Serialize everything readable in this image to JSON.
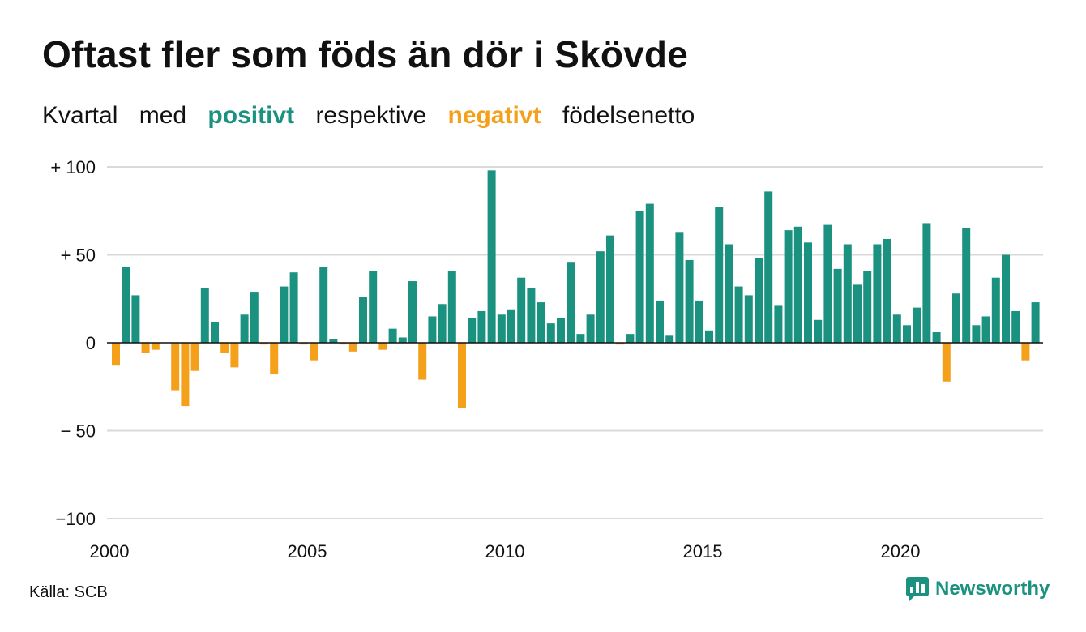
{
  "title": "Oftast fler som föds än dör i Skövde",
  "subtitle": {
    "w1": "Kvartal",
    "w2": "med",
    "positive": "positivt",
    "w3": "respektive",
    "negative": "negativt",
    "w4": "födelsenetto"
  },
  "source": "Källa: SCB",
  "logo_text": "Newsworthy",
  "logo_icon": "chart-logo-icon",
  "colors": {
    "positive": "#1b9280",
    "negative": "#f5a01b",
    "grid": "#d9d9d9",
    "zero": "#111111"
  },
  "chart_data": {
    "type": "bar",
    "x_start": "2000 Q1",
    "frequency": "quarterly",
    "ylim": [
      -100,
      100
    ],
    "yticks": [
      {
        "value": 100,
        "label": "+ 100"
      },
      {
        "value": 50,
        "label": "+  50"
      },
      {
        "value": 0,
        "label": "0"
      },
      {
        "value": -50,
        "label": "− 50"
      },
      {
        "value": -100,
        "label": "−100"
      }
    ],
    "xticks": [
      "2000",
      "2005",
      "2010",
      "2015",
      "2020"
    ],
    "values": [
      -13,
      43,
      27,
      -6,
      -4,
      0,
      -27,
      -36,
      -16,
      31,
      12,
      -6,
      -14,
      16,
      29,
      -1,
      -18,
      32,
      40,
      -1,
      -10,
      43,
      2,
      -1,
      -5,
      26,
      41,
      -4,
      8,
      3,
      35,
      -21,
      15,
      22,
      41,
      -37,
      14,
      18,
      98,
      16,
      19,
      37,
      31,
      23,
      11,
      14,
      46,
      5,
      16,
      52,
      61,
      -1,
      5,
      75,
      79,
      24,
      4,
      63,
      47,
      24,
      7,
      77,
      56,
      32,
      27,
      48,
      86,
      21,
      64,
      66,
      57,
      13,
      67,
      42,
      56,
      33,
      41,
      56,
      59,
      16,
      10,
      20,
      68,
      6,
      -22,
      28,
      65,
      10,
      15,
      37,
      50,
      18,
      -10,
      23
    ]
  }
}
